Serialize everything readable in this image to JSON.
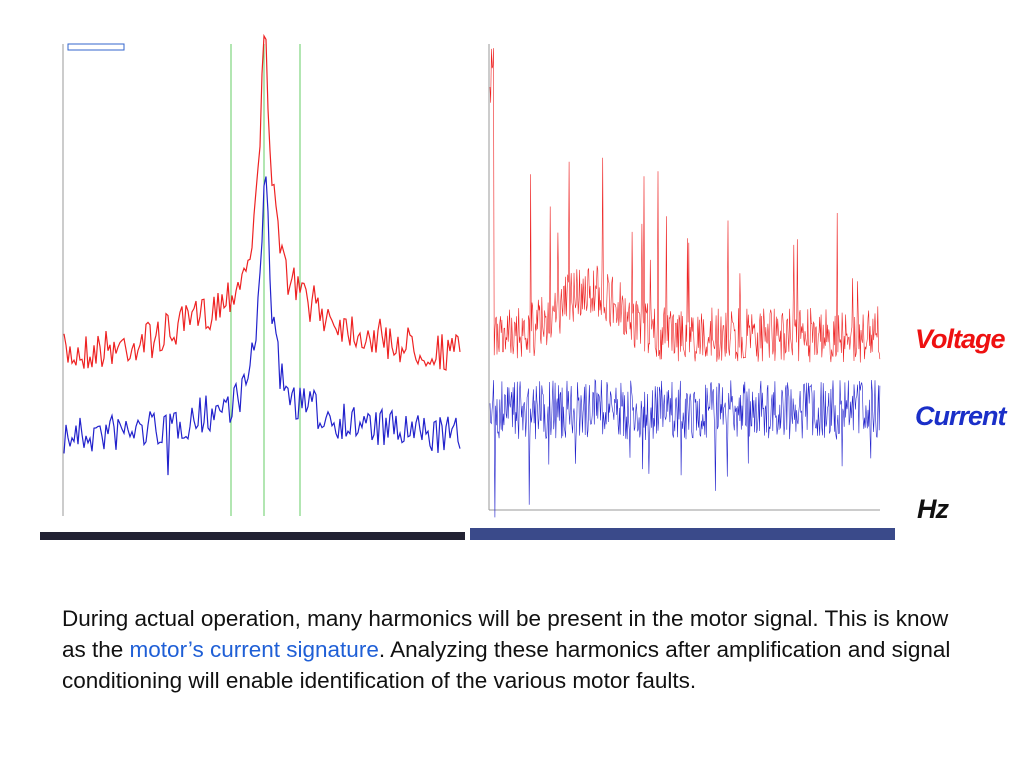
{
  "figure": {
    "labels": {
      "voltage": "Voltage",
      "current": "Current",
      "frequency": "Hz"
    }
  },
  "paragraph": {
    "before": "During actual operation, many harmonics will be present in the motor signal. This is know as the ",
    "highlight": "motor’s current signature",
    "after": ". Analyzing these harmonics after amplification and signal conditioning will enable identification of the various motor faults."
  }
}
